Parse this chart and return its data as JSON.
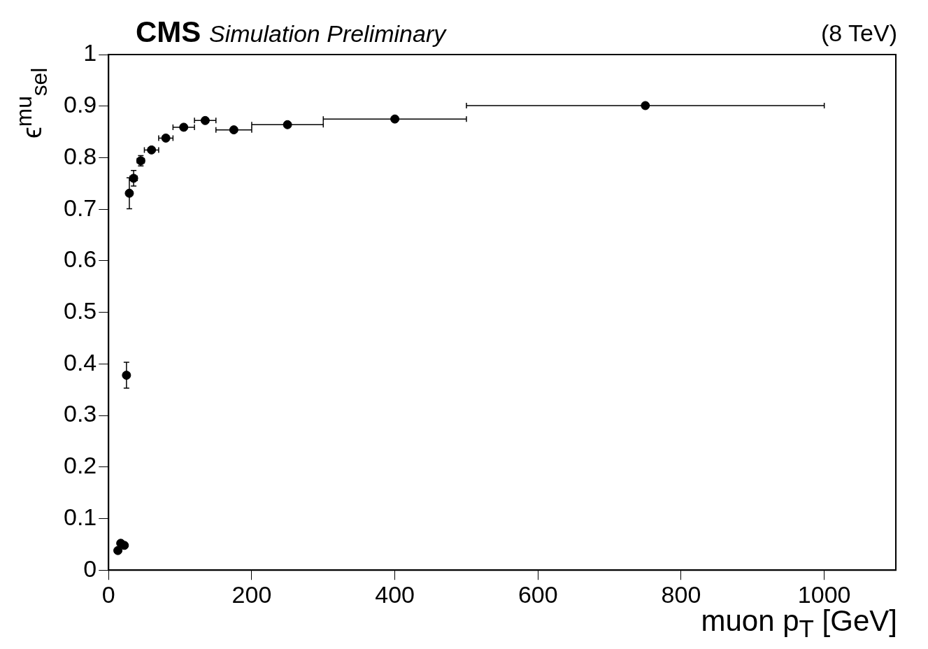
{
  "chart_data": {
    "type": "scatter",
    "title": "CMS",
    "subtitle": "Simulation Preliminary",
    "annotations": [
      "(8 TeV)"
    ],
    "xlabel": "muon p$_{T}$ [GeV]",
    "ylabel": "ϵ$^{mu}$$_{sel}$",
    "x": [
      13,
      17,
      22,
      25,
      29,
      35,
      45,
      60,
      80,
      105,
      135,
      175,
      250,
      400,
      750
    ],
    "series": [
      {
        "color": "#000000",
        "values": [
          0.038,
          0.052,
          0.048,
          0.378,
          0.731,
          0.76,
          0.794,
          0.815,
          0.838,
          0.859,
          0.872,
          0.854,
          0.864,
          0.875,
          0.901
        ],
        "errors": [
          null,
          null,
          null,
          0.025,
          0.03,
          0.015,
          0.01,
          null,
          null,
          null,
          null,
          null,
          null,
          null,
          null
        ],
        "xerrors": [
          null,
          null,
          null,
          null,
          null,
          5,
          5,
          10,
          10,
          15,
          15,
          25,
          50,
          100,
          250
        ]
      }
    ],
    "xlim": [
      0,
      1100
    ],
    "ylim": [
      0,
      1
    ],
    "xticks": [
      0,
      200,
      400,
      600,
      800,
      1000
    ],
    "yticks": [
      0,
      0.1,
      0.2,
      0.3,
      0.4,
      0.5,
      0.6,
      0.7,
      0.8,
      0.9,
      1
    ],
    "grid": false,
    "legend": false,
    "marker": "circle"
  }
}
